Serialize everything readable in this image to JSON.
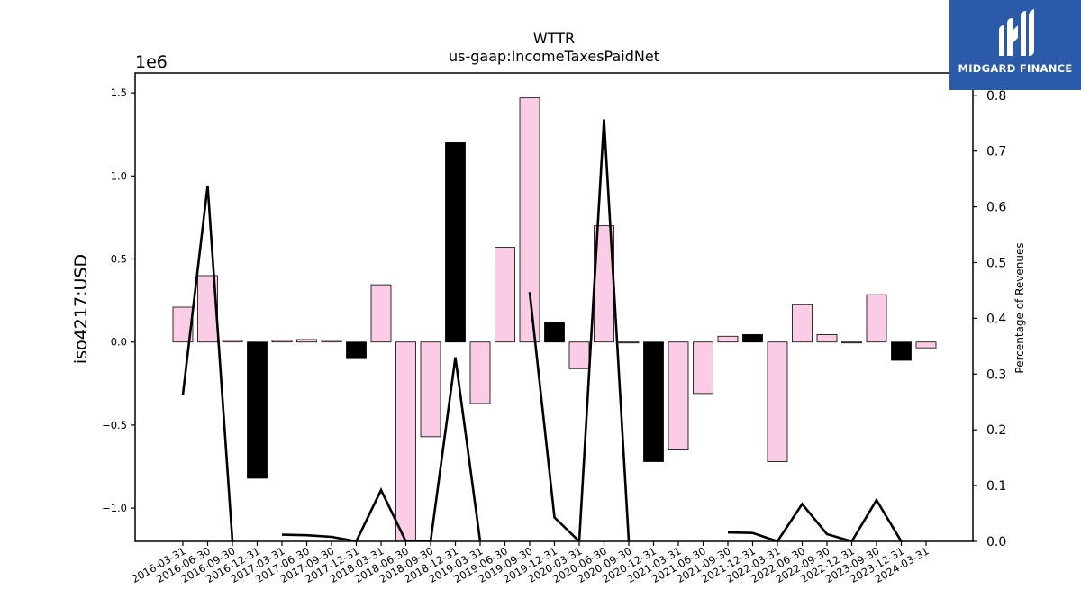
{
  "chart_data": {
    "type": "bar",
    "title": "WTTR",
    "subtitle": "us-gaap:IncomeTaxesPaidNet",
    "ylabel": "iso4217:USD",
    "y_offset_label": "1e6",
    "y2label": "Percentage of Revenues",
    "ylim": [
      -1.2,
      1.62
    ],
    "y_ticks": [
      -1.0,
      -0.5,
      0.0,
      0.5,
      1.0,
      1.5
    ],
    "y_tick_labels": [
      "−1.0",
      "−0.5",
      "0.0",
      "0.5",
      "1.0",
      "1.5"
    ],
    "y2lim": [
      0.0,
      0.84
    ],
    "y2_ticks": [
      0.0,
      0.1,
      0.2,
      0.3,
      0.4,
      0.5,
      0.6,
      0.7,
      0.8
    ],
    "y2_tick_labels": [
      "0.0",
      "0.1",
      "0.2",
      "0.3",
      "0.4",
      "0.5",
      "0.6",
      "0.7",
      "0.8"
    ],
    "categories": [
      "2016-03-31",
      "2016-06-30",
      "2016-09-30",
      "2016-12-31",
      "2017-03-31",
      "2017-06-30",
      "2017-09-30",
      "2017-12-31",
      "2018-03-31",
      "2018-06-30",
      "2018-09-30",
      "2018-12-31",
      "2019-03-31",
      "2019-06-30",
      "2019-09-30",
      "2019-12-31",
      "2020-03-31",
      "2020-06-30",
      "2020-09-30",
      "2020-12-31",
      "2021-03-31",
      "2021-06-30",
      "2021-09-30",
      "2021-12-31",
      "2022-03-31",
      "2022-06-30",
      "2022-09-30",
      "2022-12-31",
      "2023-09-30",
      "2023-12-31",
      "2024-03-31"
    ],
    "series": [
      {
        "type": "bar",
        "values": [
          0.21,
          0.4,
          0.01,
          -0.82,
          0.01,
          0.015,
          0.01,
          -0.1,
          0.345,
          -1.2,
          -0.57,
          1.2,
          -0.37,
          0.57,
          1.47,
          0.12,
          -0.16,
          0.7,
          -0.002,
          -0.72,
          -0.65,
          -0.31,
          0.035,
          0.045,
          -0.72,
          0.225,
          0.045,
          -0.002,
          0.285,
          -0.11,
          -0.035
        ],
        "highlight": [
          false,
          false,
          false,
          true,
          false,
          false,
          false,
          true,
          false,
          false,
          false,
          true,
          false,
          false,
          false,
          true,
          false,
          false,
          false,
          true,
          false,
          false,
          false,
          true,
          false,
          false,
          false,
          false,
          false,
          true,
          false
        ]
      },
      {
        "type": "line",
        "axis": "right",
        "values": [
          0.263,
          0.638,
          0.0,
          null,
          0.012,
          0.011,
          0.008,
          0.0,
          0.092,
          0.0,
          0.0,
          0.33,
          0.0,
          null,
          0.447,
          0.043,
          0.0,
          0.757,
          0.0,
          null,
          null,
          null,
          0.016,
          0.015,
          0.0,
          0.067,
          0.013,
          0.0,
          0.074,
          0.0,
          null
        ]
      }
    ],
    "colors": {
      "bar_default": "#fbcce6",
      "bar_highlight": "#000000",
      "line": "#000000"
    }
  },
  "logo": {
    "text": "MIDGARD FINANCE",
    "background": "#2b5aa8"
  }
}
